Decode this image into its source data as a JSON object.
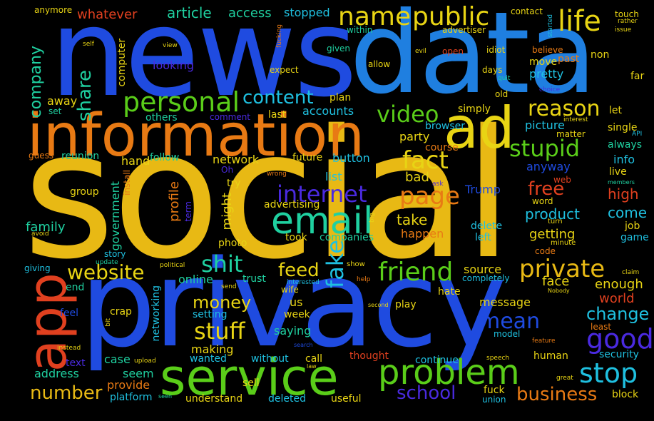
{
  "palette": {
    "background": "#000000",
    "gold": "#E8B914",
    "blue": "#1F4BE0",
    "sky": "#1F7FE0",
    "green": "#5ACD19",
    "teal": "#1FD0A0",
    "orange": "#E87A14",
    "red": "#E0401F",
    "cyan": "#1FC0E0",
    "indigo": "#4A2AE0",
    "yellow": "#E8D414"
  },
  "words": {
    "social": "social",
    "news": "news",
    "data": "data",
    "privacy": "privacy",
    "information": "information",
    "service": "service",
    "app": "app",
    "ad": "ad",
    "email": "email",
    "problem": "problem",
    "personal": "personal",
    "public": "public",
    "name": "name",
    "life": "life",
    "friend": "friend",
    "private": "private",
    "page": "page",
    "internet": "internet",
    "video": "video",
    "reason": "reason",
    "stupid": "stupid",
    "fact": "fact",
    "good": "good",
    "stop": "stop",
    "website": "website",
    "shit": "shit",
    "fake": "fake",
    "stuff": "stuff",
    "mean": "mean",
    "school": "school",
    "number": "number",
    "business": "business",
    "content": "content",
    "feed": "feed",
    "free": "free",
    "change": "change",
    "money": "money",
    "share": "share",
    "company": "company",
    "article": "article",
    "access": "access",
    "stopped": "stopped",
    "whatever": "whatever",
    "anymore": "anymore",
    "accounts": "accounts",
    "looking": "looking",
    "picture": "picture",
    "anyway": "anyway",
    "Trump": "Trump",
    "product": "product",
    "take": "take",
    "getting": "getting",
    "happen": "happen",
    "high": "high",
    "come": "come",
    "world": "world",
    "enough": "enough",
    "face": "face",
    "source": "source",
    "online": "online",
    "trust": "trust",
    "saying": "saying",
    "making": "making",
    "wanted": "wanted",
    "without": "without",
    "call": "call",
    "thought": "thought",
    "continue": "continue",
    "human": "human",
    "security": "security",
    "block": "block",
    "fuck": "fuck",
    "union": "union",
    "useful": "useful",
    "deleted": "deleted",
    "understand": "understand",
    "sell": "sell",
    "platform": "platform",
    "provide": "provide",
    "seem": "seem",
    "case": "case",
    "address": "address",
    "text": "text",
    "feel": "feel",
    "crap": "crap",
    "setting": "setting",
    "us": "us",
    "week": "week",
    "play": "play",
    "message": "message",
    "hate": "hate",
    "wife": "wife",
    "networking": "networking",
    "government": "government",
    "profile": "profile",
    "might": "might",
    "network": "network",
    "family": "family",
    "group": "group",
    "hand": "hand",
    "follow": "follow",
    "reunion": "reunion",
    "guess": "guess",
    "others": "others",
    "comment": "comment",
    "last": "last",
    "plan": "plan",
    "simply": "simply",
    "browser": "browser",
    "course": "course",
    "party": "party",
    "bad": "bad",
    "list": "list",
    "button": "button",
    "future": "future",
    "advertising": "advertising",
    "try": "try",
    "photo": "photo",
    "took": "took",
    "companies": "companies",
    "delete": "delete",
    "left": "left",
    "code": "code",
    "minute": "minute",
    "word": "word",
    "turn": "turn",
    "web": "web",
    "job": "job",
    "game": "game",
    "live": "live",
    "info": "info",
    "always": "always",
    "single": "single",
    "let": "let",
    "far": "far",
    "non": "non",
    "pretty": "pretty",
    "move": "move",
    "believe": "believe",
    "past": "past",
    "days": "days",
    "old": "old",
    "idiot": "idiot",
    "open": "open",
    "contact": "contact",
    "advertiser": "advertiser",
    "touch": "touch",
    "rather": "rather",
    "issue": "issue",
    "started": "started",
    "within": "within",
    "given": "given",
    "allow": "allow",
    "expect": "expect",
    "computer": "computer",
    "away": "away",
    "set": "set",
    "self": "self",
    "view": "view",
    "fucking": "fucking",
    "evil": "evil",
    "quit": "quit",
    "choice": "choice",
    "interest": "interest",
    "API": "API",
    "matter": "matter",
    "members": "members",
    "ask": "ask",
    "wrong": "wrong",
    "install": "install",
    "term": "term",
    "Oh": "Oh",
    "avoid": "avoid",
    "big": "big",
    "story": "story",
    "update": "update",
    "giving": "giving",
    "political": "political",
    "end": "end",
    "send": "send",
    "interested": "interested",
    "show": "show",
    "help": "help",
    "completely": "completely",
    "claim": "claim",
    "Nobody": "Nobody",
    "least": "least",
    "model": "model",
    "feature": "feature",
    "speech": "speech",
    "great": "great",
    "second": "second",
    "search": "search",
    "law": "law",
    "bit": "bit",
    "instead": "instead",
    "upload": "upload",
    "seen": "seen"
  }
}
